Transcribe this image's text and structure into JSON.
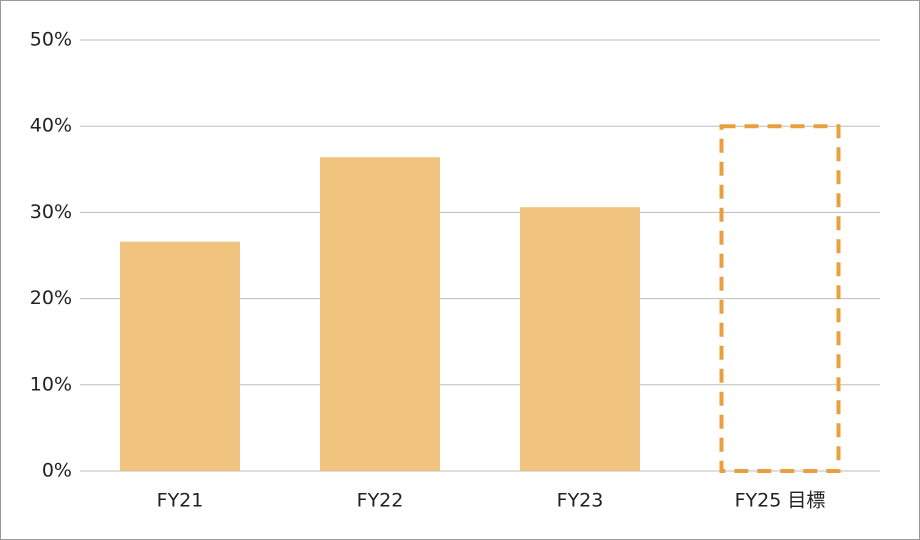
{
  "chart_data": {
    "type": "bar",
    "categories": [
      "FY21",
      "FY22",
      "FY23",
      "FY25 目標"
    ],
    "values": [
      26.6,
      36.4,
      30.6,
      40
    ],
    "colors": [
      "#f0c47e",
      "#f0c47e",
      "#f0c47e",
      "#e8a03e"
    ],
    "styles": [
      "filled",
      "filled",
      "filled",
      "dashed"
    ],
    "ylim": [
      0,
      50
    ],
    "yticks": [
      {
        "value": 0,
        "label": "0%"
      },
      {
        "value": 10,
        "label": "10%"
      },
      {
        "value": 20,
        "label": "20%"
      },
      {
        "value": 30,
        "label": "30%"
      },
      {
        "value": 40,
        "label": "40%"
      },
      {
        "value": 50,
        "label": "50%"
      }
    ],
    "grid": true
  }
}
